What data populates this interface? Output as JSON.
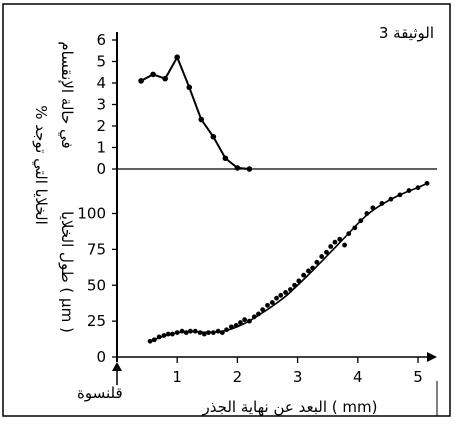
{
  "document_label": "الوثيقة 3",
  "x_axis_label": "البعد عن نهاية الجذر ( mm)",
  "x_origin_label": "قلنسوة",
  "chart_data": [
    {
      "type": "line",
      "title": "",
      "ylabel_line1": "% الخلايا التي توجد",
      "ylabel_line2": "في حالة الإنقسام",
      "xlabel": "البعد عن نهاية الجذر ( mm)",
      "xlim": [
        0,
        5.2
      ],
      "ylim": [
        0,
        6
      ],
      "x_ticks": [
        1,
        2,
        3,
        4,
        5
      ],
      "y_ticks": [
        0,
        1,
        2,
        3,
        4,
        5,
        6
      ],
      "x": [
        0.4,
        0.6,
        0.8,
        1.0,
        1.2,
        1.4,
        1.6,
        1.8,
        2.0,
        2.2
      ],
      "y": [
        4.1,
        4.4,
        4.2,
        5.2,
        3.8,
        2.3,
        1.5,
        0.5,
        0.05,
        0.0
      ]
    },
    {
      "type": "scatter",
      "title": "",
      "ylabel": "طول الخلايا ( μm )",
      "xlabel": "البعد عن نهاية الجذر ( mm)",
      "xlim": [
        0,
        5.2
      ],
      "ylim": [
        0,
        120
      ],
      "x_ticks": [
        1,
        2,
        3,
        4,
        5
      ],
      "y_ticks": [
        0,
        25,
        50,
        75,
        100
      ],
      "x": [
        0.55,
        0.62,
        0.7,
        0.78,
        0.85,
        0.92,
        1.0,
        1.08,
        1.15,
        1.22,
        1.3,
        1.38,
        1.45,
        1.52,
        1.6,
        1.68,
        1.75,
        1.82,
        1.9,
        1.98,
        2.05,
        2.12,
        2.2,
        2.28,
        2.35,
        2.42,
        2.5,
        2.58,
        2.65,
        2.72,
        2.8,
        2.88,
        2.95,
        3.02,
        3.1,
        3.18,
        3.25,
        3.32,
        3.4,
        3.48,
        3.55,
        3.62,
        3.7,
        3.78,
        3.85,
        3.95,
        4.05,
        4.15,
        4.25,
        4.4,
        4.55,
        4.7,
        4.85,
        5.0,
        5.15
      ],
      "y": [
        11,
        12,
        14,
        15,
        16,
        16,
        17,
        18,
        17,
        18,
        18,
        17,
        16,
        17,
        17,
        18,
        17,
        19,
        21,
        22,
        24,
        26,
        25,
        28,
        30,
        33,
        36,
        38,
        41,
        43,
        45,
        47,
        50,
        53,
        57,
        60,
        62,
        66,
        70,
        73,
        77,
        80,
        82,
        78,
        86,
        90,
        95,
        100,
        104,
        107,
        110,
        113,
        116,
        118,
        121
      ],
      "curve_x": [
        0.55,
        0.8,
        1.0,
        1.2,
        1.5,
        1.8,
        2.0,
        2.2,
        2.5,
        2.8,
        3.0,
        3.2,
        3.5,
        3.8,
        4.0,
        4.2,
        4.5,
        4.8,
        5.0,
        5.15
      ],
      "curve_y": [
        11,
        15,
        17,
        18,
        17,
        18,
        21,
        25,
        33,
        42,
        50,
        58,
        71,
        84,
        93,
        101,
        109,
        115,
        118,
        121
      ]
    }
  ]
}
